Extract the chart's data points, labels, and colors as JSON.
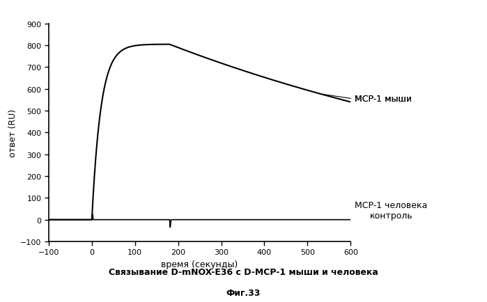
{
  "xlim": [
    -100,
    600
  ],
  "ylim": [
    -100,
    900
  ],
  "xticks": [
    -100,
    0,
    100,
    200,
    300,
    400,
    500,
    600
  ],
  "yticks": [
    -100,
    0,
    100,
    200,
    300,
    400,
    500,
    600,
    700,
    800,
    900
  ],
  "xlabel": "время (секунды)",
  "ylabel": "ответ (RU)",
  "label_mouse": "MCP-1 мыши",
  "label_human": "MCP-1 человека\nконтроль",
  "title_main": "Связывание D-mNOX-E36 с D-MCP-1 мыши и человека",
  "title_sub": "Фиг.33",
  "bg_color": "#ffffff",
  "line_color": "#000000"
}
